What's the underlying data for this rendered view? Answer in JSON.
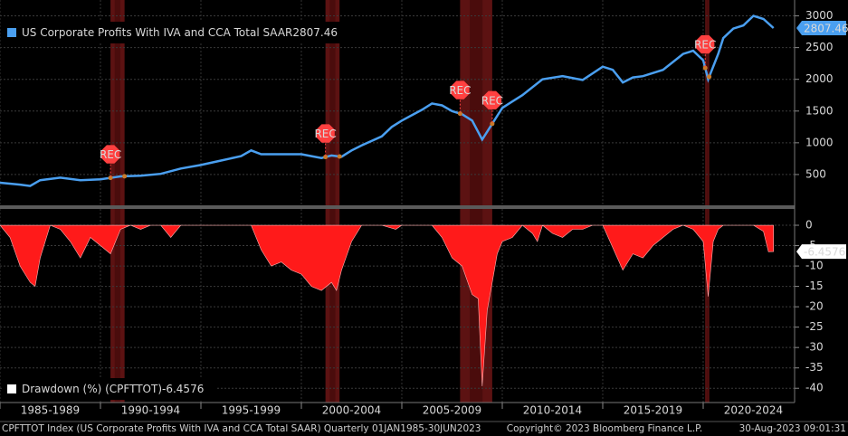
{
  "chart_data": [
    {
      "type": "line",
      "legend": "US Corporate Profits With IVA and CCA Total SAAR",
      "recession_label": "REC",
      "recessions": [
        [
          1990.5,
          1991.2
        ],
        [
          2001.2,
          2001.9
        ],
        [
          2007.9,
          2009.5
        ],
        [
          2020.1,
          2020.3
        ]
      ],
      "x": [
        1985,
        1986,
        1986.5,
        1987,
        1988,
        1989,
        1990,
        1991,
        1992,
        1993,
        1994,
        1995,
        1996,
        1997,
        1997.5,
        1998,
        1999,
        2000,
        2000.5,
        2001,
        2001.5,
        2002,
        2002.5,
        2003,
        2004,
        2004.5,
        2005,
        2006,
        2006.5,
        2007,
        2007.5,
        2008,
        2008.5,
        2009,
        2009.5,
        2010,
        2010.5,
        2011,
        2012,
        2013,
        2014,
        2015,
        2015.5,
        2016,
        2016.5,
        2017,
        2018,
        2019,
        2019.5,
        2020,
        2020.25,
        2020.75,
        2021,
        2021.5,
        2022,
        2022.5,
        2023,
        2023.5
      ],
      "series": [
        {
          "name": "US Corporate Profits With IVA and CCA Total SAAR",
          "color": "#4a9ff0",
          "values": [
            370,
            340,
            320,
            410,
            450,
            410,
            425,
            470,
            480,
            510,
            595,
            650,
            720,
            790,
            880,
            820,
            820,
            820,
            790,
            760,
            800,
            780,
            880,
            960,
            1100,
            1250,
            1350,
            1520,
            1620,
            1590,
            1500,
            1450,
            1350,
            1050,
            1300,
            1550,
            1650,
            1750,
            2000,
            2050,
            1990,
            2200,
            2150,
            1950,
            2030,
            2050,
            2150,
            2400,
            2450,
            2300,
            2000,
            2400,
            2650,
            2800,
            2850,
            3000,
            2950,
            2807.46
          ]
        }
      ],
      "xlim": [
        1985,
        2024.55
      ],
      "ylim": [
        0,
        3250
      ],
      "yticks": [
        500,
        1000,
        1500,
        2000,
        2500,
        3000
      ],
      "grid": true
    },
    {
      "type": "area",
      "legend": "Drawdown (%) (CPFTTOT)",
      "x": [
        1985,
        1985.5,
        1986,
        1986.5,
        1986.75,
        1987,
        1987.5,
        1988,
        1988.5,
        1989,
        1989.5,
        1990,
        1990.5,
        1991,
        1991.5,
        1992,
        1992.5,
        1993,
        1993.5,
        1994,
        1996,
        1997.5,
        1998,
        1998.5,
        1999,
        1999.5,
        2000,
        2000.5,
        2001,
        2001.5,
        2001.75,
        2002,
        2002.5,
        2003,
        2004,
        2004.7,
        2005,
        2006.5,
        2007,
        2007.5,
        2008,
        2008.5,
        2008.8,
        2009,
        2009.25,
        2009.5,
        2009.75,
        2010,
        2010.5,
        2011,
        2011.5,
        2011.75,
        2012,
        2012.5,
        2013,
        2013.5,
        2014,
        2014.5,
        2015,
        2016,
        2016.5,
        2017,
        2017.5,
        2018,
        2018.5,
        2019,
        2019.5,
        2020,
        2020.25,
        2020.5,
        2020.75,
        2021,
        2022.5,
        2023,
        2023.25,
        2023.5
      ],
      "series": [
        {
          "name": "Drawdown (%) (CPFTTOT)",
          "color": "#ff1a1a",
          "values": [
            0,
            -3,
            -10,
            -14,
            -15,
            -8,
            0,
            -1,
            -4,
            -8,
            -3,
            -5,
            -7,
            -1,
            0,
            -1,
            0,
            0,
            -3,
            0,
            0,
            0,
            -6,
            -10,
            -9,
            -11,
            -12,
            -15,
            -16,
            -14,
            -16,
            -11,
            -4,
            0,
            0,
            -1,
            0,
            0,
            -3,
            -8,
            -10,
            -17,
            -18,
            -39.5,
            -21,
            -14,
            -7,
            -4,
            -3,
            0,
            -2,
            -4,
            0,
            -2,
            -3,
            -1,
            -1,
            0,
            0,
            -11,
            -7,
            -8,
            -5,
            -3,
            -1,
            0,
            -1,
            -4,
            -17.5,
            -4,
            -1,
            0,
            0,
            -1.5,
            -6.5,
            -6.4576
          ]
        }
      ],
      "xlim": [
        1985,
        2024.55
      ],
      "ylim": [
        -43.5,
        4
      ],
      "yticks": [
        0,
        -5,
        -10,
        -15,
        -20,
        -25,
        -30,
        -35,
        -40
      ],
      "xticks": [
        {
          "value": 1985,
          "label": "1985-1989"
        },
        {
          "value": 1990,
          "label": "1990-1994"
        },
        {
          "value": 1995,
          "label": "1995-1999"
        },
        {
          "value": 2000,
          "label": "2000-2004"
        },
        {
          "value": 2005,
          "label": "2005-2009"
        },
        {
          "value": 2010,
          "label": "2010-2014"
        },
        {
          "value": 2015,
          "label": "2015-2019"
        },
        {
          "value": 2020,
          "label": "2020-2024"
        }
      ],
      "grid": true
    }
  ],
  "footer": {
    "source": "CPFTTOT Index (US Corporate Profits With IVA and CCA Total SAAR)  Quarterly 01JAN1985-30JUN2023",
    "copyright": "Copyright© 2023 Bloomberg Finance L.P.",
    "timestamp": "30-Aug-2023 09:01:31"
  }
}
